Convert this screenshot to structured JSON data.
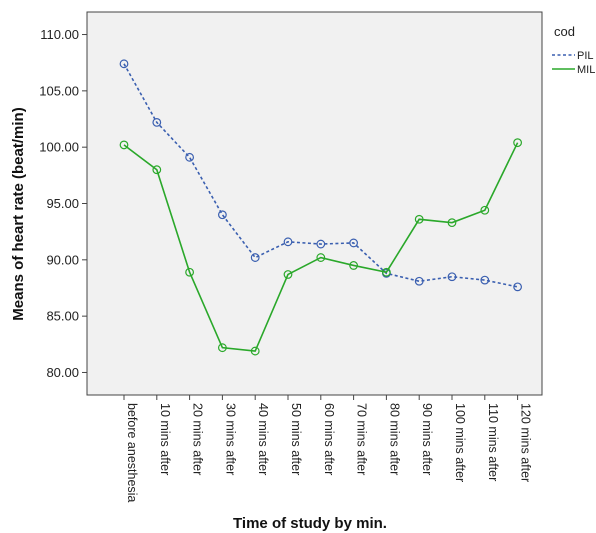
{
  "chart_data": {
    "type": "line",
    "xlabel": "Time of study by min.",
    "ylabel": "Means of heart rate (beat/min)",
    "ylim": [
      78,
      112
    ],
    "yticks": [
      "80.00",
      "85.00",
      "90.00",
      "95.00",
      "100.00",
      "105.00",
      "110.00"
    ],
    "grid": false,
    "legend": {
      "title": "cod",
      "position": "top-right"
    },
    "categories": [
      "before anesthesia",
      "10 mins after",
      "20 mins after",
      "30 mins after",
      "40 mins after",
      "50 mins after",
      "60 mins after",
      "70 mins after",
      "80 mins after",
      "90 mins after",
      "100 mins after",
      "110 mins after",
      "120 mins after"
    ],
    "series": [
      {
        "name": "PIL",
        "color": "#3a5fb0",
        "line_style": "dashed",
        "values": [
          107.4,
          102.2,
          99.1,
          94.0,
          90.2,
          91.6,
          91.4,
          91.5,
          88.8,
          88.1,
          88.5,
          88.2,
          87.6
        ]
      },
      {
        "name": "MIL",
        "color": "#2aa82a",
        "line_style": "solid",
        "values": [
          100.2,
          98.0,
          88.9,
          82.2,
          81.9,
          88.7,
          90.2,
          89.5,
          88.9,
          93.6,
          93.3,
          94.4,
          100.4
        ]
      }
    ]
  }
}
